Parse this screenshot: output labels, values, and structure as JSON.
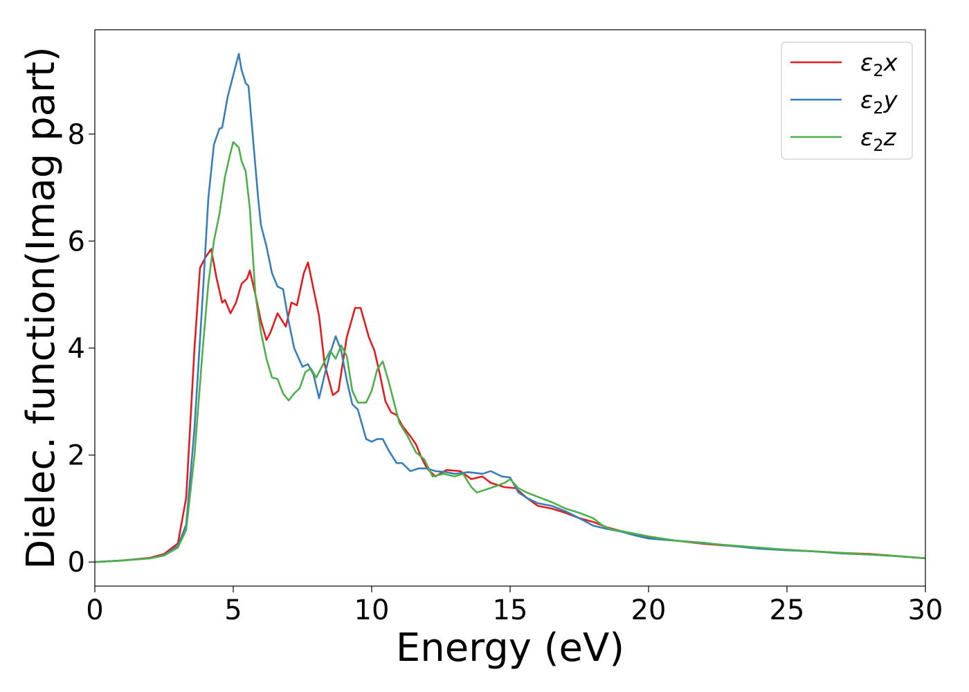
{
  "chart_data": {
    "type": "line",
    "title": "",
    "xlabel": "Energy (eV)",
    "ylabel": "Dielec. function(Imag part)",
    "xlim": [
      0,
      30
    ],
    "ylim": [
      -0.45,
      9.95
    ],
    "xticks": [
      0,
      5,
      10,
      15,
      20,
      25,
      30
    ],
    "yticks": [
      0,
      2,
      4,
      6,
      8
    ],
    "grid": false,
    "legend_position": "top-right",
    "series": [
      {
        "name": "ε2x",
        "legend_base": "ε",
        "legend_sub": "2",
        "legend_suffix": "x",
        "color": "#e41a1c",
        "points": [
          [
            0,
            0
          ],
          [
            1,
            0.03
          ],
          [
            2,
            0.08
          ],
          [
            2.5,
            0.15
          ],
          [
            3,
            0.35
          ],
          [
            3.3,
            1.2
          ],
          [
            3.6,
            4.0
          ],
          [
            3.8,
            5.5
          ],
          [
            4.0,
            5.7
          ],
          [
            4.2,
            5.85
          ],
          [
            4.4,
            5.3
          ],
          [
            4.6,
            4.85
          ],
          [
            4.7,
            4.9
          ],
          [
            4.9,
            4.65
          ],
          [
            5.1,
            4.85
          ],
          [
            5.3,
            5.2
          ],
          [
            5.5,
            5.3
          ],
          [
            5.6,
            5.45
          ],
          [
            5.8,
            5.0
          ],
          [
            6.0,
            4.5
          ],
          [
            6.2,
            4.15
          ],
          [
            6.35,
            4.3
          ],
          [
            6.6,
            4.65
          ],
          [
            6.9,
            4.4
          ],
          [
            7.1,
            4.85
          ],
          [
            7.3,
            4.8
          ],
          [
            7.55,
            5.4
          ],
          [
            7.7,
            5.6
          ],
          [
            7.9,
            5.1
          ],
          [
            8.1,
            4.6
          ],
          [
            8.3,
            3.7
          ],
          [
            8.6,
            3.12
          ],
          [
            8.8,
            3.2
          ],
          [
            9.1,
            4.2
          ],
          [
            9.4,
            4.75
          ],
          [
            9.6,
            4.75
          ],
          [
            9.9,
            4.2
          ],
          [
            10.1,
            3.95
          ],
          [
            10.3,
            3.5
          ],
          [
            10.5,
            3.0
          ],
          [
            10.7,
            2.8
          ],
          [
            10.9,
            2.75
          ],
          [
            11.1,
            2.55
          ],
          [
            11.4,
            2.35
          ],
          [
            11.6,
            2.2
          ],
          [
            11.8,
            1.95
          ],
          [
            12.0,
            1.75
          ],
          [
            12.3,
            1.6
          ],
          [
            12.7,
            1.72
          ],
          [
            13.2,
            1.7
          ],
          [
            13.6,
            1.55
          ],
          [
            14.0,
            1.6
          ],
          [
            14.3,
            1.48
          ],
          [
            14.8,
            1.4
          ],
          [
            15.2,
            1.38
          ],
          [
            15.6,
            1.2
          ],
          [
            16.0,
            1.05
          ],
          [
            16.5,
            1.0
          ],
          [
            17.0,
            0.92
          ],
          [
            17.5,
            0.82
          ],
          [
            18.0,
            0.75
          ],
          [
            18.5,
            0.65
          ],
          [
            19.0,
            0.58
          ],
          [
            19.5,
            0.52
          ],
          [
            20,
            0.46
          ],
          [
            20.5,
            0.42
          ],
          [
            21,
            0.4
          ],
          [
            22,
            0.34
          ],
          [
            23,
            0.3
          ],
          [
            24,
            0.26
          ],
          [
            25,
            0.23
          ],
          [
            26,
            0.2
          ],
          [
            27,
            0.17
          ],
          [
            28,
            0.15
          ],
          [
            29,
            0.11
          ],
          [
            30,
            0.07
          ]
        ]
      },
      {
        "name": "ε2y",
        "legend_base": "ε",
        "legend_sub": "2",
        "legend_suffix": "y",
        "color": "#377eb8",
        "points": [
          [
            0,
            0
          ],
          [
            1,
            0.03
          ],
          [
            2,
            0.07
          ],
          [
            2.5,
            0.13
          ],
          [
            3,
            0.3
          ],
          [
            3.3,
            0.7
          ],
          [
            3.6,
            2.5
          ],
          [
            3.9,
            5.0
          ],
          [
            4.1,
            6.8
          ],
          [
            4.3,
            7.8
          ],
          [
            4.5,
            8.1
          ],
          [
            4.6,
            8.12
          ],
          [
            4.8,
            8.7
          ],
          [
            5.0,
            9.1
          ],
          [
            5.2,
            9.5
          ],
          [
            5.3,
            9.2
          ],
          [
            5.45,
            8.95
          ],
          [
            5.55,
            8.9
          ],
          [
            5.7,
            8.0
          ],
          [
            5.9,
            6.8
          ],
          [
            6.0,
            6.3
          ],
          [
            6.2,
            5.9
          ],
          [
            6.4,
            5.4
          ],
          [
            6.6,
            5.15
          ],
          [
            6.8,
            5.1
          ],
          [
            7.0,
            4.5
          ],
          [
            7.2,
            4.0
          ],
          [
            7.5,
            3.65
          ],
          [
            7.7,
            3.7
          ],
          [
            7.9,
            3.5
          ],
          [
            8.1,
            3.06
          ],
          [
            8.3,
            3.5
          ],
          [
            8.5,
            3.9
          ],
          [
            8.7,
            4.22
          ],
          [
            8.9,
            3.95
          ],
          [
            9.1,
            3.4
          ],
          [
            9.3,
            2.95
          ],
          [
            9.5,
            2.85
          ],
          [
            9.8,
            2.3
          ],
          [
            10.0,
            2.25
          ],
          [
            10.2,
            2.3
          ],
          [
            10.4,
            2.3
          ],
          [
            10.6,
            2.1
          ],
          [
            10.9,
            1.85
          ],
          [
            11.1,
            1.85
          ],
          [
            11.4,
            1.7
          ],
          [
            11.7,
            1.75
          ],
          [
            12.0,
            1.75
          ],
          [
            12.3,
            1.7
          ],
          [
            12.7,
            1.68
          ],
          [
            13.0,
            1.65
          ],
          [
            13.5,
            1.68
          ],
          [
            14.0,
            1.65
          ],
          [
            14.3,
            1.7
          ],
          [
            14.7,
            1.6
          ],
          [
            15.0,
            1.58
          ],
          [
            15.3,
            1.3
          ],
          [
            15.6,
            1.2
          ],
          [
            16.0,
            1.1
          ],
          [
            16.5,
            1.05
          ],
          [
            17.0,
            0.95
          ],
          [
            17.5,
            0.82
          ],
          [
            18.0,
            0.68
          ],
          [
            18.5,
            0.62
          ],
          [
            19.0,
            0.57
          ],
          [
            19.5,
            0.5
          ],
          [
            20,
            0.44
          ],
          [
            21,
            0.4
          ],
          [
            22,
            0.36
          ],
          [
            23,
            0.3
          ],
          [
            24,
            0.25
          ],
          [
            25,
            0.22
          ],
          [
            26,
            0.2
          ],
          [
            27,
            0.16
          ],
          [
            28,
            0.14
          ],
          [
            29,
            0.11
          ],
          [
            30,
            0.07
          ]
        ]
      },
      {
        "name": "ε2z",
        "legend_base": "ε",
        "legend_sub": "2",
        "legend_suffix": "z",
        "color": "#4daf4a",
        "points": [
          [
            0,
            0
          ],
          [
            1,
            0.03
          ],
          [
            2,
            0.07
          ],
          [
            2.5,
            0.12
          ],
          [
            3,
            0.27
          ],
          [
            3.3,
            0.6
          ],
          [
            3.6,
            2.0
          ],
          [
            3.9,
            4.0
          ],
          [
            4.1,
            5.2
          ],
          [
            4.3,
            6.0
          ],
          [
            4.5,
            6.5
          ],
          [
            4.7,
            7.2
          ],
          [
            4.9,
            7.65
          ],
          [
            5.0,
            7.85
          ],
          [
            5.2,
            7.75
          ],
          [
            5.3,
            7.5
          ],
          [
            5.45,
            7.3
          ],
          [
            5.6,
            6.6
          ],
          [
            5.8,
            5.0
          ],
          [
            6.0,
            4.3
          ],
          [
            6.2,
            3.8
          ],
          [
            6.4,
            3.45
          ],
          [
            6.6,
            3.42
          ],
          [
            6.8,
            3.15
          ],
          [
            7.0,
            3.02
          ],
          [
            7.2,
            3.15
          ],
          [
            7.4,
            3.25
          ],
          [
            7.6,
            3.55
          ],
          [
            7.8,
            3.62
          ],
          [
            8.0,
            3.45
          ],
          [
            8.2,
            3.65
          ],
          [
            8.5,
            3.95
          ],
          [
            8.7,
            3.8
          ],
          [
            8.9,
            4.05
          ],
          [
            9.1,
            3.85
          ],
          [
            9.3,
            3.2
          ],
          [
            9.5,
            2.98
          ],
          [
            9.8,
            2.98
          ],
          [
            10.0,
            3.2
          ],
          [
            10.2,
            3.6
          ],
          [
            10.4,
            3.75
          ],
          [
            10.6,
            3.4
          ],
          [
            10.8,
            3.0
          ],
          [
            11.0,
            2.6
          ],
          [
            11.3,
            2.35
          ],
          [
            11.6,
            2.05
          ],
          [
            11.9,
            1.92
          ],
          [
            12.2,
            1.6
          ],
          [
            12.6,
            1.65
          ],
          [
            13.0,
            1.6
          ],
          [
            13.3,
            1.65
          ],
          [
            13.6,
            1.4
          ],
          [
            13.8,
            1.3
          ],
          [
            14.1,
            1.35
          ],
          [
            14.5,
            1.42
          ],
          [
            14.8,
            1.48
          ],
          [
            15.0,
            1.55
          ],
          [
            15.3,
            1.38
          ],
          [
            15.6,
            1.3
          ],
          [
            16.0,
            1.22
          ],
          [
            16.5,
            1.12
          ],
          [
            17.0,
            1.0
          ],
          [
            17.5,
            0.92
          ],
          [
            18.0,
            0.82
          ],
          [
            18.3,
            0.7
          ],
          [
            18.6,
            0.62
          ],
          [
            19,
            0.58
          ],
          [
            19.5,
            0.53
          ],
          [
            20,
            0.48
          ],
          [
            21,
            0.4
          ],
          [
            22,
            0.35
          ],
          [
            23,
            0.31
          ],
          [
            24,
            0.27
          ],
          [
            25,
            0.23
          ],
          [
            26,
            0.2
          ],
          [
            27,
            0.17
          ],
          [
            28,
            0.14
          ],
          [
            29,
            0.11
          ],
          [
            30,
            0.07
          ]
        ]
      }
    ]
  }
}
